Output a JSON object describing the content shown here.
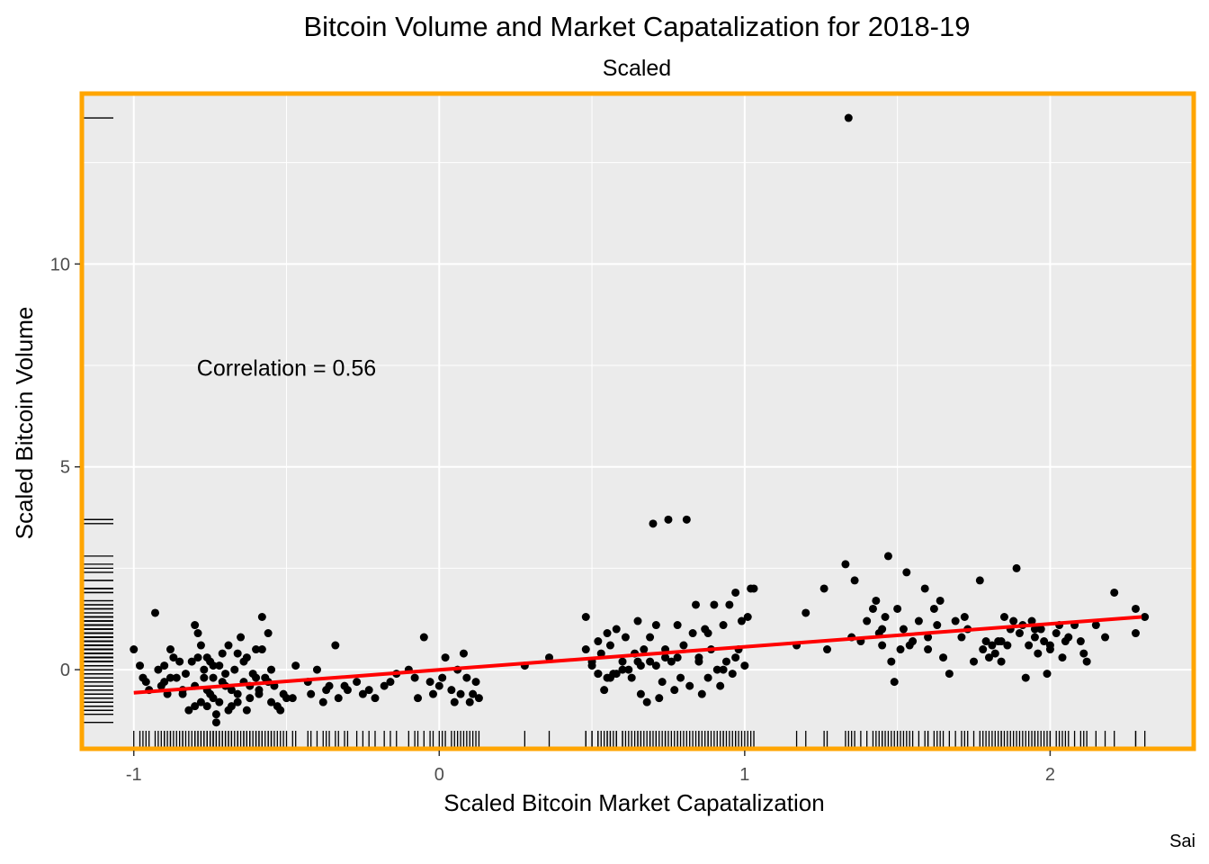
{
  "chart_data": {
    "type": "scatter",
    "title": "Bitcoin Volume and Market Capatalization for 2018-19",
    "subtitle": "Scaled",
    "xlabel": "Scaled Bitcoin Market Capatalization",
    "ylabel": "Scaled Bitcoin Volume",
    "caption": "Sai",
    "annotation": "Correlation = 0.56",
    "xlim": [
      -1.17,
      2.47
    ],
    "ylim": [
      -1.95,
      14.2
    ],
    "x_ticks": [
      -1,
      0,
      1,
      2
    ],
    "y_ticks": [
      0,
      5,
      10
    ],
    "grid": true,
    "background": "#ebebeb",
    "border_color": "#ffa500",
    "point_color": "#000000",
    "fit_line_color": "#ff0000",
    "fit_line": [
      [
        -1.0,
        -0.57
      ],
      [
        2.3,
        1.3
      ]
    ],
    "rug": true,
    "series": [
      {
        "values": [
          [
            -1.0,
            0.5
          ],
          [
            -0.98,
            0.1
          ],
          [
            -0.97,
            -0.2
          ],
          [
            -0.96,
            -0.3
          ],
          [
            -0.95,
            -0.5
          ],
          [
            -0.93,
            1.4
          ],
          [
            -0.92,
            0.0
          ],
          [
            -0.91,
            -0.4
          ],
          [
            -0.9,
            0.1
          ],
          [
            -0.89,
            -0.6
          ],
          [
            -0.88,
            0.5
          ],
          [
            -0.87,
            0.3
          ],
          [
            -0.86,
            -0.2
          ],
          [
            -0.85,
            0.2
          ],
          [
            -0.84,
            -0.6
          ],
          [
            -0.83,
            -0.1
          ],
          [
            -0.82,
            -1.0
          ],
          [
            -0.81,
            0.2
          ],
          [
            -0.8,
            -0.4
          ],
          [
            -0.79,
            0.3
          ],
          [
            -0.78,
            -0.8
          ],
          [
            -0.77,
            0.0
          ],
          [
            -0.76,
            -0.5
          ],
          [
            -0.75,
            0.2
          ],
          [
            -0.74,
            -0.7
          ],
          [
            -0.73,
            -1.1
          ],
          [
            -0.72,
            0.1
          ],
          [
            -0.71,
            -0.3
          ],
          [
            -0.8,
            -0.9
          ],
          [
            -0.79,
            0.9
          ],
          [
            -0.8,
            1.1
          ],
          [
            -0.78,
            0.6
          ],
          [
            -0.77,
            -0.2
          ],
          [
            -0.76,
            0.3
          ],
          [
            -0.75,
            -0.6
          ],
          [
            -0.74,
            0.1
          ],
          [
            -0.73,
            -1.3
          ],
          [
            -0.72,
            -0.8
          ],
          [
            -0.71,
            0.4
          ],
          [
            -0.7,
            -0.4
          ],
          [
            -0.69,
            0.6
          ],
          [
            -0.68,
            -0.9
          ],
          [
            -0.67,
            0.0
          ],
          [
            -0.66,
            -0.6
          ],
          [
            -0.65,
            0.8
          ],
          [
            -0.64,
            -0.3
          ],
          [
            -0.63,
            0.3
          ],
          [
            -0.62,
            -0.7
          ],
          [
            -0.61,
            -0.1
          ],
          [
            -0.6,
            0.5
          ],
          [
            -0.59,
            -0.5
          ],
          [
            -0.58,
            1.3
          ],
          [
            -0.57,
            -0.2
          ],
          [
            -0.56,
            0.9
          ],
          [
            -0.55,
            -0.8
          ],
          [
            -0.54,
            -0.4
          ],
          [
            -0.53,
            -0.9
          ],
          [
            -0.52,
            -1.0
          ],
          [
            -0.51,
            -0.6
          ],
          [
            -0.5,
            -0.7
          ],
          [
            -0.48,
            -0.7
          ],
          [
            -0.47,
            0.1
          ],
          [
            -0.55,
            0.0
          ],
          [
            -0.6,
            -0.2
          ],
          [
            -0.62,
            -0.4
          ],
          [
            -0.66,
            -0.8
          ],
          [
            -0.68,
            -0.5
          ],
          [
            -0.7,
            -0.1
          ],
          [
            -0.63,
            -1.0
          ],
          [
            -0.64,
            0.2
          ],
          [
            -0.56,
            -0.3
          ],
          [
            -0.58,
            0.5
          ],
          [
            -0.59,
            -0.6
          ],
          [
            -0.66,
            0.4
          ],
          [
            -0.69,
            -1.0
          ],
          [
            -0.74,
            -0.2
          ],
          [
            -0.76,
            -0.9
          ],
          [
            -0.84,
            -0.5
          ],
          [
            -0.88,
            -0.2
          ],
          [
            -0.9,
            -0.3
          ],
          [
            -0.43,
            -0.3
          ],
          [
            -0.42,
            -0.6
          ],
          [
            -0.4,
            0.0
          ],
          [
            -0.38,
            -0.8
          ],
          [
            -0.37,
            -0.5
          ],
          [
            -0.36,
            -0.4
          ],
          [
            -0.34,
            0.6
          ],
          [
            -0.33,
            -0.7
          ],
          [
            -0.31,
            -0.4
          ],
          [
            -0.3,
            -0.5
          ],
          [
            -0.27,
            -0.3
          ],
          [
            -0.25,
            -0.6
          ],
          [
            -0.23,
            -0.5
          ],
          [
            -0.21,
            -0.7
          ],
          [
            -0.18,
            -0.4
          ],
          [
            -0.16,
            -0.3
          ],
          [
            -0.14,
            -0.1
          ],
          [
            -0.1,
            0.0
          ],
          [
            -0.08,
            -0.2
          ],
          [
            -0.07,
            -0.7
          ],
          [
            -0.05,
            0.8
          ],
          [
            -0.03,
            -0.3
          ],
          [
            -0.02,
            -0.6
          ],
          [
            0.0,
            -0.4
          ],
          [
            0.01,
            -0.2
          ],
          [
            0.02,
            0.3
          ],
          [
            0.04,
            -0.5
          ],
          [
            0.05,
            -0.8
          ],
          [
            0.06,
            0.0
          ],
          [
            0.07,
            -0.6
          ],
          [
            0.08,
            0.4
          ],
          [
            0.09,
            -0.2
          ],
          [
            0.1,
            -0.8
          ],
          [
            0.11,
            -0.6
          ],
          [
            0.12,
            -0.3
          ],
          [
            0.13,
            -0.7
          ],
          [
            0.28,
            0.1
          ],
          [
            0.48,
            1.3
          ],
          [
            0.5,
            0.2
          ],
          [
            0.52,
            -0.1
          ],
          [
            0.53,
            0.4
          ],
          [
            0.55,
            -0.2
          ],
          [
            0.57,
            -0.1
          ],
          [
            0.6,
            0.0
          ],
          [
            0.66,
            0.1
          ],
          [
            0.71,
            1.1
          ],
          [
            0.74,
            0.3
          ],
          [
            0.78,
            0.3
          ],
          [
            0.85,
            0.2
          ],
          [
            0.88,
            0.9
          ],
          [
            0.93,
            0.0
          ],
          [
            0.97,
            0.3
          ],
          [
            0.5,
            0.1
          ],
          [
            0.52,
            -0.1
          ],
          [
            0.56,
            -0.2
          ],
          [
            0.58,
            -0.1
          ],
          [
            0.62,
            0.0
          ],
          [
            0.65,
            0.2
          ],
          [
            0.69,
            0.2
          ],
          [
            0.36,
            0.3
          ],
          [
            0.48,
            0.5
          ],
          [
            0.52,
            0.7
          ],
          [
            0.54,
            -0.5
          ],
          [
            0.55,
            0.9
          ],
          [
            0.56,
            0.6
          ],
          [
            0.58,
            1.0
          ],
          [
            0.6,
            0.2
          ],
          [
            0.61,
            0.8
          ],
          [
            0.63,
            -0.2
          ],
          [
            0.64,
            0.4
          ],
          [
            0.65,
            1.2
          ],
          [
            0.66,
            -0.6
          ],
          [
            0.67,
            0.5
          ],
          [
            0.68,
            -0.8
          ],
          [
            0.69,
            0.8
          ],
          [
            0.7,
            3.6
          ],
          [
            0.71,
            0.1
          ],
          [
            0.72,
            -0.7
          ],
          [
            0.73,
            -0.3
          ],
          [
            0.74,
            0.5
          ],
          [
            0.75,
            3.7
          ],
          [
            0.76,
            0.2
          ],
          [
            0.77,
            -0.5
          ],
          [
            0.78,
            1.1
          ],
          [
            0.79,
            -0.2
          ],
          [
            0.8,
            0.6
          ],
          [
            0.81,
            3.7
          ],
          [
            0.82,
            -0.4
          ],
          [
            0.83,
            0.9
          ],
          [
            0.84,
            1.6
          ],
          [
            0.85,
            0.3
          ],
          [
            0.86,
            -0.6
          ],
          [
            0.87,
            1.0
          ],
          [
            0.88,
            -0.2
          ],
          [
            0.89,
            0.5
          ],
          [
            0.9,
            1.6
          ],
          [
            0.91,
            0.0
          ],
          [
            0.92,
            -0.4
          ],
          [
            0.93,
            1.1
          ],
          [
            0.94,
            0.2
          ],
          [
            0.95,
            1.6
          ],
          [
            0.96,
            -0.1
          ],
          [
            0.97,
            1.9
          ],
          [
            0.98,
            0.5
          ],
          [
            0.99,
            1.2
          ],
          [
            1.0,
            0.1
          ],
          [
            1.01,
            1.3
          ],
          [
            1.02,
            2.0
          ],
          [
            1.03,
            2.0
          ],
          [
            1.17,
            0.6
          ],
          [
            1.2,
            1.4
          ],
          [
            1.26,
            2.0
          ],
          [
            1.27,
            0.5
          ],
          [
            1.33,
            2.6
          ],
          [
            1.34,
            13.6
          ],
          [
            1.35,
            0.8
          ],
          [
            1.36,
            2.2
          ],
          [
            1.38,
            0.7
          ],
          [
            1.4,
            1.2
          ],
          [
            1.42,
            1.5
          ],
          [
            1.43,
            1.7
          ],
          [
            1.44,
            0.9
          ],
          [
            1.45,
            0.6
          ],
          [
            1.46,
            1.3
          ],
          [
            1.47,
            2.8
          ],
          [
            1.48,
            0.2
          ],
          [
            1.49,
            -0.3
          ],
          [
            1.5,
            1.5
          ],
          [
            1.51,
            0.5
          ],
          [
            1.52,
            1.0
          ],
          [
            1.53,
            2.4
          ],
          [
            1.54,
            0.6
          ],
          [
            1.55,
            0.7
          ],
          [
            1.57,
            1.2
          ],
          [
            1.59,
            2.0
          ],
          [
            1.6,
            0.8
          ],
          [
            1.62,
            1.5
          ],
          [
            1.63,
            1.1
          ],
          [
            1.64,
            1.7
          ],
          [
            1.65,
            0.3
          ],
          [
            1.67,
            -0.1
          ],
          [
            1.69,
            1.2
          ],
          [
            1.71,
            0.8
          ],
          [
            1.73,
            1.0
          ],
          [
            1.75,
            0.2
          ],
          [
            1.77,
            2.2
          ],
          [
            1.78,
            0.5
          ],
          [
            1.79,
            0.7
          ],
          [
            1.8,
            0.3
          ],
          [
            1.81,
            0.6
          ],
          [
            1.82,
            0.4
          ],
          [
            1.83,
            0.7
          ],
          [
            1.84,
            0.2
          ],
          [
            1.85,
            1.3
          ],
          [
            1.86,
            0.6
          ],
          [
            1.87,
            1.0
          ],
          [
            1.88,
            1.2
          ],
          [
            1.89,
            2.5
          ],
          [
            1.9,
            0.9
          ],
          [
            1.91,
            1.1
          ],
          [
            1.92,
            -0.2
          ],
          [
            1.93,
            0.6
          ],
          [
            1.94,
            1.2
          ],
          [
            1.95,
            0.8
          ],
          [
            1.96,
            0.4
          ],
          [
            1.97,
            1.0
          ],
          [
            1.98,
            0.7
          ],
          [
            1.99,
            -0.1
          ],
          [
            2.0,
            0.5
          ],
          [
            2.02,
            0.9
          ],
          [
            2.03,
            1.1
          ],
          [
            2.04,
            0.3
          ],
          [
            2.05,
            0.7
          ],
          [
            2.06,
            0.8
          ],
          [
            2.08,
            1.1
          ],
          [
            2.1,
            0.7
          ],
          [
            2.11,
            0.4
          ],
          [
            2.12,
            0.2
          ],
          [
            2.15,
            1.1
          ],
          [
            2.18,
            0.8
          ],
          [
            2.21,
            1.9
          ],
          [
            2.28,
            1.5
          ],
          [
            2.28,
            0.9
          ],
          [
            2.31,
            1.3
          ],
          [
            1.72,
            1.3
          ],
          [
            1.84,
            0.7
          ],
          [
            1.95,
            1.0
          ],
          [
            2.0,
            0.6
          ],
          [
            1.6,
            0.5
          ],
          [
            1.45,
            1.0
          ]
        ]
      }
    ]
  }
}
